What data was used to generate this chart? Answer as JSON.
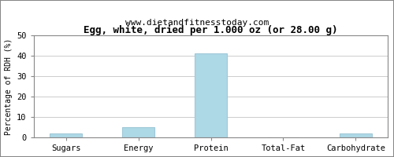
{
  "title": "Egg, white, dried per 1.000 oz (or 28.00 g)",
  "subtitle": "www.dietandfitnesstoday.com",
  "categories": [
    "Sugars",
    "Energy",
    "Protein",
    "Total-Fat",
    "Carbohydrate"
  ],
  "values": [
    2.0,
    5.3,
    41.0,
    0.0,
    2.0
  ],
  "bar_color": "#add8e6",
  "bar_edge_color": "#a0c8d8",
  "ylabel": "Percentage of RDH (%)",
  "ylim": [
    0,
    50
  ],
  "yticks": [
    0,
    10,
    20,
    30,
    40,
    50
  ],
  "background_color": "#ffffff",
  "plot_bg_color": "#ffffff",
  "grid_color": "#cccccc",
  "title_fontsize": 9,
  "subtitle_fontsize": 8,
  "ylabel_fontsize": 7,
  "tick_fontsize": 7.5,
  "font_family": "monospace",
  "outer_border_color": "#aaaaaa"
}
